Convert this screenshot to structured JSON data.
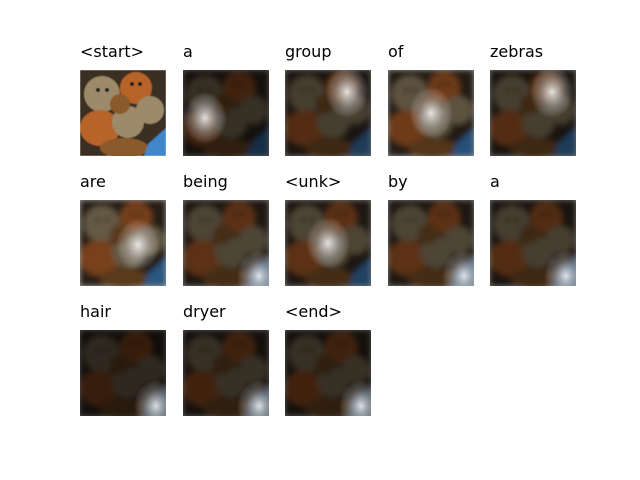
{
  "caption_words": [
    {
      "word": "<start>",
      "attention_brightness": 1.0,
      "highlight": "none"
    },
    {
      "word": "a",
      "attention_brightness": 0.35,
      "highlight": "left"
    },
    {
      "word": "group",
      "attention_brightness": 0.45,
      "highlight": "top-right"
    },
    {
      "word": "of",
      "attention_brightness": 0.6,
      "highlight": "center"
    },
    {
      "word": "zebras",
      "attention_brightness": 0.45,
      "highlight": "top-right"
    },
    {
      "word": "are",
      "attention_brightness": 0.65,
      "highlight": "center-right"
    },
    {
      "word": "being",
      "attention_brightness": 0.5,
      "highlight": "bottom-right"
    },
    {
      "word": "<unk>",
      "attention_brightness": 0.5,
      "highlight": "center"
    },
    {
      "word": "by",
      "attention_brightness": 0.5,
      "highlight": "bottom-right"
    },
    {
      "word": "a",
      "attention_brightness": 0.45,
      "highlight": "bottom-right"
    },
    {
      "word": "hair",
      "attention_brightness": 0.3,
      "highlight": "bottom-right"
    },
    {
      "word": "dryer",
      "attention_brightness": 0.35,
      "highlight": "bottom-right"
    },
    {
      "word": "<end>",
      "attention_brightness": 0.35,
      "highlight": "bottom-right"
    }
  ],
  "colors": {
    "teddy_brown": "#8a5a2b",
    "teddy_orange": "#b8642a",
    "teddy_tan": "#9c8a6a",
    "blue_accent": "#3f86c8",
    "dark": "#1c1712"
  }
}
